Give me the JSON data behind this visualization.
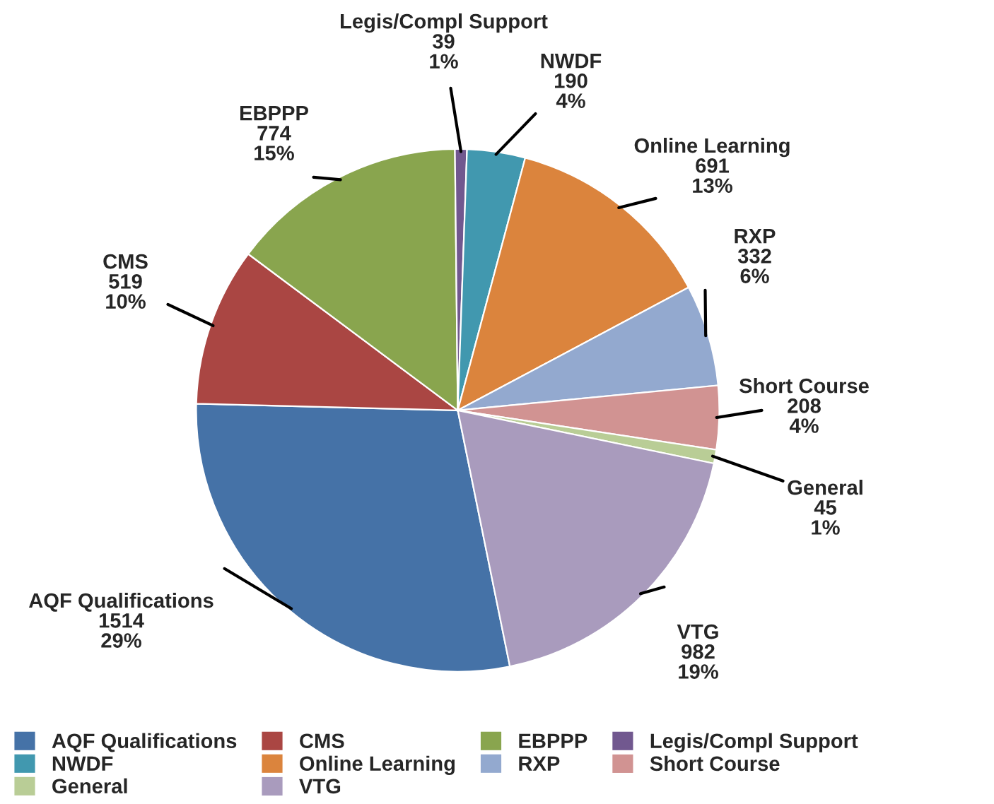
{
  "chart_data": {
    "type": "pie",
    "categories": [
      "AQF Qualifications",
      "CMS",
      "EBPPP",
      "Legis/Compl Support",
      "NWDF",
      "Online Learning",
      "RXP",
      "Short Course",
      "General",
      "VTG"
    ],
    "values": [
      1514,
      519,
      774,
      39,
      190,
      691,
      332,
      208,
      45,
      982
    ],
    "colors": [
      "#4572a7",
      "#aa4643",
      "#89a54e",
      "#71588f",
      "#4198af",
      "#db843d",
      "#93a9cf",
      "#d19392",
      "#b9cd96",
      "#a99bbd"
    ],
    "value_labels": [
      "1514\n29%",
      "519\n10%",
      "774\n15%",
      "39\n1%",
      "190\n4%",
      "691\n13%",
      "332\n6%",
      "208\n4%",
      "45\n1%",
      "982\n19%"
    ],
    "legend": "bottom"
  }
}
